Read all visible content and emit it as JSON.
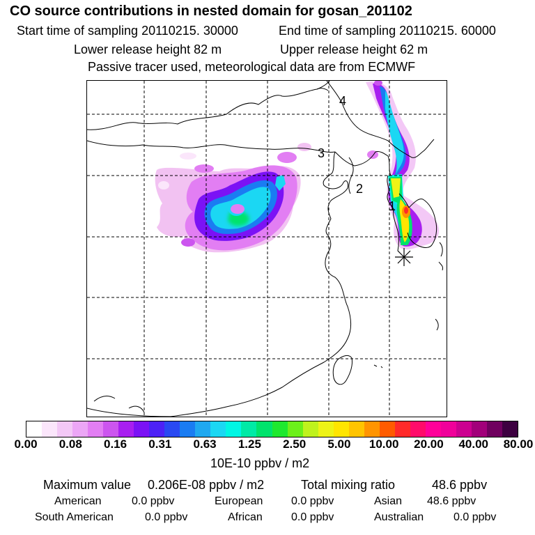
{
  "header": {
    "title": "CO  source contributions in nested domain for gosan_201102",
    "start_label": "Start time of sampling 20110215. 30000",
    "end_label": "End time of sampling 20110215. 60000",
    "lower_release": "Lower release height   82 m",
    "upper_release": "Upper release height   62 m",
    "tracer_note": "Passive tracer used, meteorological data are from ECMWF"
  },
  "map": {
    "labels": [
      "1",
      "2",
      "3",
      "4"
    ],
    "receptor_marker": "asterisk-icon"
  },
  "colorbar": {
    "colors": [
      "#ffffff",
      "#fbe6fb",
      "#f3c8f6",
      "#eca6f6",
      "#e27ef3",
      "#cc55ef",
      "#a81ff0",
      "#7b12f5",
      "#4d22f6",
      "#2a49f2",
      "#1a7cf2",
      "#1fa8f0",
      "#1bd7f3",
      "#00f6e4",
      "#00eaa6",
      "#00e36c",
      "#1ee92f",
      "#6cf01a",
      "#bff21d",
      "#eef316",
      "#ffe500",
      "#ffc400",
      "#ff9400",
      "#ff5b00",
      "#ff2a2a",
      "#ff0b6a",
      "#ff0099",
      "#f0009a",
      "#cc0090",
      "#a2007a",
      "#70005f",
      "#3d0040"
    ],
    "ticks": [
      "0.00",
      "0.08",
      "0.16",
      "0.31",
      "0.63",
      "1.25",
      "2.50",
      "5.00",
      "10.00",
      "20.00",
      "40.00",
      "80.00"
    ],
    "unit": "10E-10 ppbv / m2"
  },
  "summary": {
    "max_label": "Maximum value",
    "max_value": "0.206E-08 ppbv / m2",
    "total_label": "Total mixing ratio",
    "total_value": "48.6 ppbv",
    "regions": [
      {
        "name": "American",
        "value": "0.0 ppbv"
      },
      {
        "name": "European",
        "value": "0.0 ppbv"
      },
      {
        "name": "Asian",
        "value": "48.6 ppbv"
      },
      {
        "name": "South American",
        "value": "0.0 ppbv"
      },
      {
        "name": "African",
        "value": "0.0 ppbv"
      },
      {
        "name": "Australian",
        "value": "0.0 ppbv"
      }
    ]
  }
}
